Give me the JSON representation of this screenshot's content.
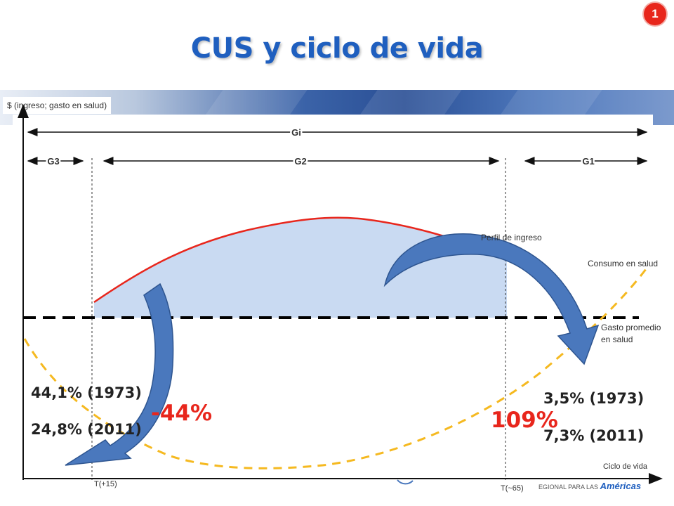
{
  "slide": {
    "title": "CUS y ciclo de vida",
    "badge": "1"
  },
  "axes": {
    "y_label": "$ (ingreso; gasto en salud)",
    "x_label": "Ciclo de vida",
    "tick_start": "T(+15)",
    "tick_end": "T(~65)"
  },
  "groups": {
    "gi": "Gi",
    "g3": "G3",
    "g2": "G2",
    "g1": "G1"
  },
  "curves": {
    "income_profile": "Perfil de ingreso",
    "health_consumption": "Consumo en salud",
    "average_spending_line1": "Gasto promedio",
    "average_spending_line2": "en salud"
  },
  "stats": {
    "left_1973": "44,1% (1973)",
    "left_2011": "24,8% (2011)",
    "left_change": "-44%",
    "right_1973": "3,5% (1973)",
    "right_2011": "7,3% (2011)",
    "right_change": "109%"
  },
  "colors": {
    "title": "#1f5fbf",
    "income_curve": "#e8261c",
    "income_fill": "#c9daf2",
    "health_curve": "#f5b920",
    "average_line": "#000000",
    "arrow_fill": "#4a78bd",
    "highlight_pct": "#e8261c"
  },
  "logo": {
    "prefix": "EGIONAL PARA LAS",
    "brand": "Américas"
  }
}
